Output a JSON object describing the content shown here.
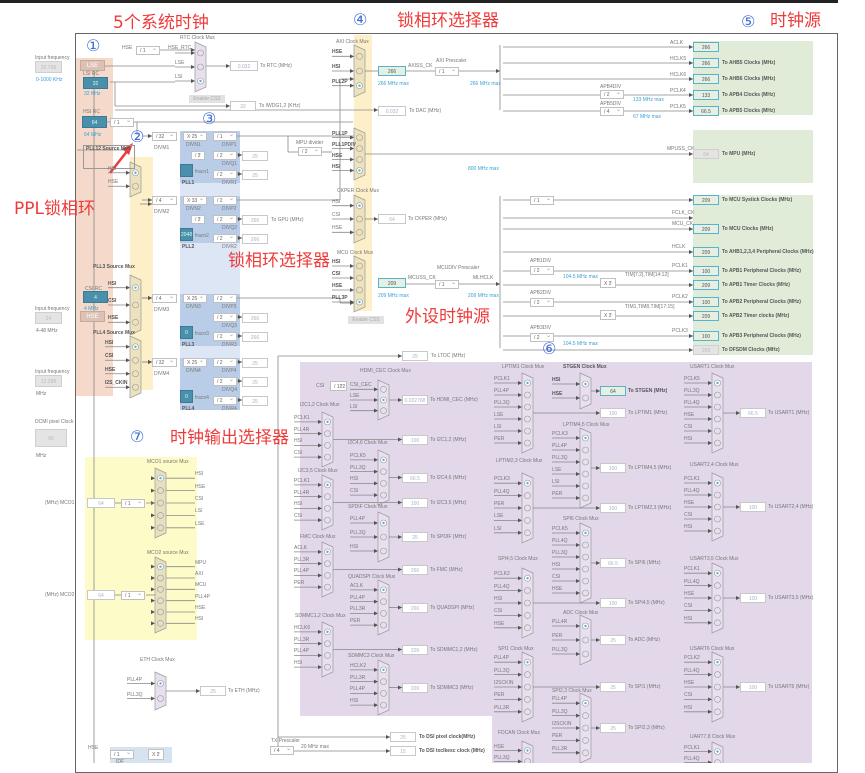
{
  "annotations": {
    "red": {
      "system_clocks": "5个系统时钟",
      "pll_selector_top": "锁相环选择器",
      "pll_selector_mid": "锁相环选择器",
      "pll": "PPL锁相环",
      "clock_source": "时钟源",
      "peripheral_clock_source": "外设时钟源",
      "clock_output_selector": "时钟输出选择器"
    },
    "circled": {
      "c1": "①",
      "c2": "②",
      "c3": "③",
      "c4": "④",
      "c5": "⑤",
      "c6": "⑥",
      "c7": "⑦"
    }
  },
  "colors": {
    "oscillators": "#f5d9cb",
    "source_mux": "#fdf0c8",
    "pll": "#b9cde8",
    "peripherals": "#e2d8ea",
    "outputs": "#e0ecd8",
    "mco": "#fdfcc8",
    "active_box": "#55b3cc"
  },
  "inputs": {
    "lse": {
      "label": "Input frequency",
      "value": "32.768",
      "range": "0-1000 KHz"
    },
    "hse": {
      "label": "Input frequency",
      "value": "24",
      "range": "4-48 MHz"
    },
    "i2s": {
      "label": "Input frequency",
      "value": "12.288",
      "unit": "MHz"
    },
    "dcmi": {
      "label": "DCMI pixel Clock",
      "value": "80",
      "unit": "MHz"
    }
  },
  "oscillators": {
    "lse": "LSE",
    "lsi_label": "LSI RC",
    "lsi_value": "32",
    "lsi_freq": "32 KHz",
    "hsi_label": "HSI RC",
    "hsi_value": "64",
    "hsi_freq": "64 MHz",
    "hsi_div": "/ 1",
    "csi_label": "CSI RC",
    "csi_value": "4",
    "csi_freq": "4 MHz",
    "hse": "HSE"
  },
  "rtc": {
    "title": "RTC Clock Mux",
    "hse": "HSE",
    "div": "/ 1",
    "hse_rtc": "HSE_RTC",
    "inputs": [
      "",
      "LSE",
      "LSI"
    ],
    "selected": 2,
    "value": "0.032",
    "dest": "To RTC (MHz)",
    "enable_css": "Enable CSS",
    "iwdg_value": "32",
    "iwdg_dest": "To IWDG1,2 (KHz)"
  },
  "source_muxes": {
    "pll12": {
      "title": "PLL12 Source Mux",
      "inputs": [
        "HSI",
        "HSE"
      ],
      "selected": 0
    },
    "pll3": {
      "title": "PLL3 Source Mux",
      "inputs": [
        "HSI",
        "CSI",
        "HSE"
      ],
      "selected": 0
    },
    "pll4": {
      "title": "PLL4 Source Mux",
      "inputs": [
        "HSI",
        "CSI",
        "HSE",
        "I2S_CKIN"
      ],
      "selected": 0
    }
  },
  "plls": [
    {
      "name": "PLL1",
      "divm": "/ 32",
      "divm_label": "DIVM1",
      "divn": "X 25",
      "divn_label": "DIVN1",
      "divp": "/ 1",
      "divp_label": "DIVP1",
      "fracdiv": "/ 2",
      "divq": "/ 2",
      "divq_label": "DIVQ1",
      "q_value": "25",
      "frac": "",
      "frac_label": "fracn1",
      "divr": "/ 2",
      "divr_label": "DIVR1",
      "r_value": "25"
    },
    {
      "name": "PLL2",
      "divm": "/ 4",
      "divm_label": "DIVM2",
      "divn": "X 33",
      "divn_label": "DIVN2",
      "divp": "/ 2",
      "divp_label": "DIVP2",
      "fracdiv": "/ 2",
      "divq": "/ 2",
      "divq_label": "DIVQ2",
      "q_value": "266",
      "q_dest": "To GPU (MHz)",
      "frac": "2048",
      "frac_label": "fracn2",
      "divr": "/ 2",
      "divr_label": "DIVR2",
      "r_value": "266"
    },
    {
      "name": "PLL3",
      "divm": "/ 4",
      "divm_label": "DIVM3",
      "divn": "X 25",
      "divn_label": "DIVN3",
      "divp": "/ 2",
      "divp_label": "DIVP3",
      "divq": "/ 2",
      "divq_label": "DIVQ3",
      "q_value": "266",
      "frac": "0",
      "frac_label": "fracn3",
      "divr": "/ 2",
      "divr_label": "DIVR3",
      "r_value": "266"
    },
    {
      "name": "PLL4",
      "divm": "/ 32",
      "divm_label": "DIVM4",
      "divn": "X 25",
      "divn_label": "DIVN4",
      "divp": "/ 2",
      "divp_label": "DIVP4",
      "p_value": "25",
      "divq": "/ 2",
      "divq_label": "DIVQ4",
      "q_value": "25",
      "frac": "0",
      "frac_label": "fracn4",
      "divr": "/ 2",
      "divr_label": "DIVR4",
      "r_value": "25"
    }
  ],
  "system_muxes": {
    "axi": {
      "title": "AXI Clock Mux",
      "inputs": [
        "HSE",
        "HSI",
        "PLL2P"
      ],
      "selected": 2,
      "value": "266",
      "max": "266 MHz max",
      "signal": "AXISS_CK"
    },
    "dac": {
      "value": "0.032",
      "dest": "To DAC (MHz)"
    },
    "mpu": {
      "inputs": [
        "PLL1P",
        "PLL1PDIV",
        "HSE",
        "HSI"
      ],
      "selected": 3,
      "divider_label": "MPU divider",
      "divider": "/ 2",
      "max": "800 MHz max"
    },
    "ckper": {
      "title": "CKPER Clock Mux",
      "inputs": [
        "HSI",
        "CSI",
        "HSE"
      ],
      "selected": 0,
      "value": "64",
      "dest": "To CKPER (MHz)"
    },
    "mcu": {
      "title": "MCU Clock Mux",
      "inputs": [
        "HSI",
        "CSI",
        "HSE",
        "PLL3P"
      ],
      "selected": 3,
      "value": "209",
      "max": "209 MHz max",
      "signal": "MCUSS_CK",
      "enable_css": "Enable CSS"
    }
  },
  "prescalers": {
    "axi": {
      "label": "AXI Prescaler",
      "div": "/ 1",
      "max": "266 MHz max"
    },
    "mcudiv": {
      "label": "MCUDIV Prescaler",
      "div": "/ 1",
      "signal": "MLHCLK",
      "max": "209 MHz max"
    },
    "apb4": {
      "label": "APB4DIV",
      "div": "/ 2",
      "max": "133 MHz max"
    },
    "apb5": {
      "label": "APB5DIV",
      "div": "/ 4",
      "max": "67 MHz max"
    },
    "systick": {
      "div": "/ 1"
    },
    "apb1": {
      "label": "APB1DIV",
      "div": "/ 2",
      "max": "104.5 MHz max",
      "timer_mult": "X 2",
      "timers": "TIM[7:2],TIM[14:12]"
    },
    "apb2": {
      "label": "APB2DIV",
      "div": "/ 2",
      "timer_mult": "X 2",
      "timers": "TIM1,TIM8,TIM[17:15]"
    },
    "apb3": {
      "label": "APB3DIV",
      "div": "/ 2",
      "max": "104.5 MHz max"
    }
  },
  "outputs_axi": [
    {
      "signal": "ACLK",
      "value": "266",
      "dest": ""
    },
    {
      "signal": "HCLK5",
      "value": "266",
      "dest": "To AHB5 Clocks (MHz)"
    },
    {
      "signal": "HCLK6",
      "value": "266",
      "dest": "To AHB6 Clocks (MHz)"
    },
    {
      "signal": "PCLK4",
      "value": "133",
      "dest": "To APB4 Clocks (MHz)"
    },
    {
      "signal": "PCLK5",
      "value": "66.5",
      "dest": "To APB5 Clocks (MHz)"
    }
  ],
  "output_mpu": {
    "signal": "MPUSS_CK",
    "value": "64",
    "dest": "To MPU (MHz)"
  },
  "outputs_mcu": [
    {
      "signal": "",
      "value": "209",
      "dest": "To MCU Systick Clocks (MHz)"
    },
    {
      "signal": "FCLK_CK",
      "value": "",
      "dest": ""
    },
    {
      "signal": "MCU_CK",
      "value": "209",
      "dest": "To MCU Clocks (MHz)"
    },
    {
      "signal": "HCLK",
      "value": "209",
      "dest": "To AHB1,2,3,4 Peripheral Clocks (MHz)"
    },
    {
      "signal": "PCLK1",
      "value": "100",
      "dest": "To APB1 Peripheral Clocks (MHz)"
    },
    {
      "signal": "",
      "value": "209",
      "dest": "To APB1 Timer Clocks (MHz)"
    },
    {
      "signal": "PCLK2",
      "value": "100",
      "dest": "To APB2 Peripheral Clocks (MHz)"
    },
    {
      "signal": "",
      "value": "209",
      "dest": "To APB2 Timer clocks (MHz)"
    },
    {
      "signal": "PCLK3",
      "value": "100",
      "dest": "To APB3 Peripheral Clocks (MHz)"
    },
    {
      "signal": "",
      "value": "209",
      "dest": "To DFSDM Clocks (MHz)"
    }
  ],
  "ltdc": {
    "value": "25",
    "dest": "To LTDC (MHz)"
  },
  "peripheral_muxes": [
    {
      "title": "HDMI_CEC Clock Mux",
      "inputs": [
        "CSI_CEC",
        "LSE",
        "LSI"
      ],
      "selected": 1,
      "value": "0.032768",
      "dest": "To HDMI_CEC (MHz)",
      "pre_label": "CSI",
      "pre_div": "/ 122"
    },
    {
      "title": "I2C1,2 Clock Mux",
      "inputs": [
        "PCLK1",
        "PLL4R",
        "HSI",
        "CSI"
      ],
      "selected": 0,
      "value": "100",
      "dest": "To I2C1,2 (MHz)"
    },
    {
      "title": "I2C4,6 Clock Mux",
      "inputs": [
        "PCLK5",
        "PLL3Q",
        "HSI",
        "CSI"
      ],
      "selected": 0,
      "value": "66.5",
      "dest": "To I2C4,6 (MHz)"
    },
    {
      "title": "I2C3,5 Clock Mux",
      "inputs": [
        "PCLK1",
        "PLL4R",
        "HSI",
        "CSI"
      ],
      "selected": 0,
      "value": "100",
      "dest": "To I2C3,5 (MHz)"
    },
    {
      "title": "SPDIF Clock Mux",
      "inputs": [
        "PLL4P",
        "PLL3Q",
        "HSI"
      ],
      "selected": 0,
      "value": "25",
      "dest": "To SPDIF (MHz)"
    },
    {
      "title": "FMC Clock Mux",
      "inputs": [
        "ACLK",
        "PLL3R",
        "PLL4P",
        "PER"
      ],
      "selected": 0,
      "value": "266",
      "dest": "To FMC (MHz)"
    },
    {
      "title": "QUADSPI Clock Mux",
      "inputs": [
        "ACLK",
        "PLL4P",
        "PLL3R",
        "PER"
      ],
      "selected": 0,
      "value": "266",
      "dest": "To QUADSPI (MHz)"
    },
    {
      "title": "SDMMC1,2 Clock Mux",
      "inputs": [
        "HCLK6",
        "PLL3R",
        "PLL4P",
        "HSI"
      ],
      "selected": 0,
      "value": "209",
      "dest": "To SDMMC1,2 (MHz)"
    },
    {
      "title": "SDMMC3 Clock Mux",
      "inputs": [
        "HCLK2",
        "PLL3R",
        "PLL4P",
        "HSI"
      ],
      "selected": 0,
      "value": "209",
      "dest": "To SDMMC3 (MHz)"
    },
    {
      "title": "LPTIM1 Clock Mux",
      "inputs": [
        "PCLK1",
        "PLL4P",
        "PLL3Q",
        "LSE",
        "LSI",
        "PER"
      ],
      "selected": 0,
      "value": "100",
      "dest": "To LPTIM1 (MHz)"
    },
    {
      "title": "STGEN Clock Mux",
      "inputs": [
        "HSI",
        "HSE"
      ],
      "selected": 0,
      "value": "64",
      "dest": "To STGEN (MHz)",
      "active": true
    },
    {
      "title": "LPTIM4,5 Clock Mux",
      "inputs": [
        "PCLK3",
        "PLL4P",
        "PLL3Q",
        "LSE",
        "LSI",
        "PER"
      ],
      "selected": 0,
      "value": "100",
      "dest": "To LPTIM4,5 (MHz)"
    },
    {
      "title": "LPTIM2,3 Clock Mux",
      "inputs": [
        "PCLK3",
        "PLL4Q",
        "PER",
        "LSE",
        "LSI"
      ],
      "selected": 0,
      "value": "100",
      "dest": "To LPTIM2,3 (MHz)"
    },
    {
      "title": "SPI6 Clock Mux",
      "inputs": [
        "PCLK5",
        "PLL4Q",
        "PLL3Q",
        "HSI",
        "CSI",
        "HSE"
      ],
      "selected": 0,
      "value": "66.5",
      "dest": "To SPI6 (MHz)"
    },
    {
      "title": "SPI4,5 Clock Mux",
      "inputs": [
        "PCLK2",
        "PLL4Q",
        "HSI",
        "CSI",
        "HSE"
      ],
      "selected": 0,
      "value": "100",
      "dest": "To SPI4,5 (MHz)"
    },
    {
      "title": "ADC Clock Mux",
      "inputs": [
        "PLL4R",
        "PER",
        "PLL3Q"
      ],
      "selected": 0,
      "value": "25",
      "dest": "To ADC (MHz)"
    },
    {
      "title": "SPI1 Clock Mux",
      "inputs": [
        "PLL4P",
        "PLL3Q",
        "I2SCKIN",
        "PER",
        "PLL3R"
      ],
      "selected": 0,
      "value": "25",
      "dest": "To SPI1 (MHz)"
    },
    {
      "title": "SPI2,3 Clock Mux",
      "inputs": [
        "PLL4P",
        "PLL3Q",
        "I2SCKIN",
        "PER",
        "PLL3R"
      ],
      "selected": 0,
      "value": "25",
      "dest": "To SPI2,3 (MHz)"
    },
    {
      "title": "FDCAN Clock Mux",
      "inputs": [
        "HSE",
        "PLL3Q"
      ],
      "selected": 0
    },
    {
      "title": "USART1 Clock Mux",
      "inputs": [
        "PCLK5",
        "PLL3Q",
        "PLL4Q",
        "HSE",
        "CSI",
        "HSI"
      ],
      "selected": 0,
      "value": "66.5",
      "dest": "To USART1 (MHz)"
    },
    {
      "title": "USART2,4 Clock Mux",
      "inputs": [
        "PCLK1",
        "PLL4Q",
        "HSE",
        "CSI",
        "HSI"
      ],
      "selected": 0,
      "value": "100",
      "dest": "To USART2,4 (MHz)"
    },
    {
      "title": "USART3,5 Clock Mux",
      "inputs": [
        "PCLK1",
        "PLL4Q",
        "HSE",
        "CSI",
        "HSI"
      ],
      "selected": 0,
      "value": "100",
      "dest": "To USART3,5 (MHz)"
    },
    {
      "title": "USART6 Clock Mux",
      "inputs": [
        "PCLK2",
        "PLL4Q",
        "HSE",
        "CSI",
        "HSI"
      ],
      "selected": 0,
      "value": "100",
      "dest": "To USART6 (MHz)"
    },
    {
      "title": "UART7,8 Clock Mux",
      "inputs": [
        "PCLK1",
        "PLL4Q"
      ],
      "selected": 0
    }
  ],
  "mco": {
    "mco1": {
      "title": "MCO1 source Mux",
      "inputs": [
        "HSI",
        "HSE",
        "CSI",
        "LSI",
        "LSE"
      ],
      "selected": 0,
      "div": "/ 1",
      "value": "64",
      "pin": "(MHz) MCO1"
    },
    "mco2": {
      "title": "MCO2 source Mux",
      "inputs": [
        "MPU",
        "AXI",
        "MCU",
        "PLL4P",
        "HSE",
        "HSI"
      ],
      "selected": 0,
      "div": "/ 1",
      "value": "64",
      "pin": "(MHz) MCO2"
    }
  },
  "eth": {
    "title": "ETH Clock Mux",
    "inputs": [
      "PLL4P",
      "PLL3Q"
    ],
    "selected": 0,
    "value": "25",
    "dest": "To ETH (MHz)"
  },
  "dsi": {
    "hse": "HSE",
    "div": "/ 1",
    "idf": "IDF",
    "mult": "X 2",
    "pixel_value": "25",
    "pixel_dest": "To DSI pixel clock(MHz)",
    "tx_label": "TX Prescaler",
    "tx_div": "/ 4",
    "tx_max": "20 MHz max",
    "txesc_value": "15",
    "txesc_dest": "To DSI txclkesc clock (MHz)"
  }
}
